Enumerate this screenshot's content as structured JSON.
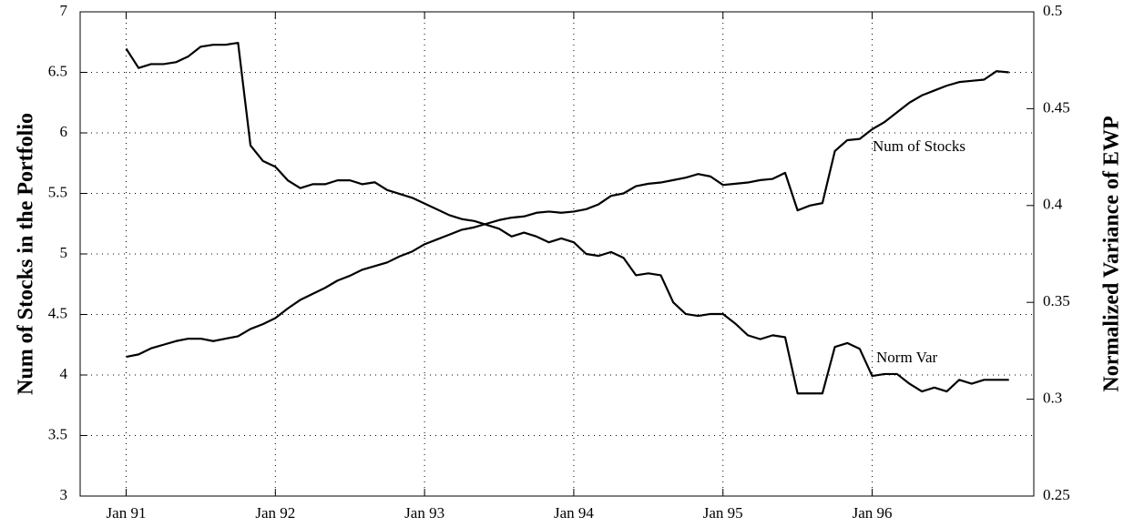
{
  "chart_data": {
    "type": "line",
    "ylabel": "Num of Stocks in the Portfolio",
    "y2label": "Normalized Variance of EWP",
    "xlim": [
      -3.7,
      73
    ],
    "xticks": [
      {
        "value": 0,
        "label": "Jan 91"
      },
      {
        "value": 12,
        "label": "Jan 92"
      },
      {
        "value": 24,
        "label": "Jan 93"
      },
      {
        "value": 36,
        "label": "Jan 94"
      },
      {
        "value": 48,
        "label": "Jan 95"
      },
      {
        "value": 60,
        "label": "Jan 96"
      }
    ],
    "ylim": [
      3,
      7
    ],
    "yticks": [
      3,
      3.5,
      4,
      4.5,
      5,
      5.5,
      6,
      6.5,
      7
    ],
    "y2lim": [
      0.25,
      0.5
    ],
    "y2ticks": [
      0.25,
      0.3,
      0.35,
      0.4,
      0.45,
      0.5
    ],
    "grid": true,
    "x": [
      0,
      1,
      2,
      3,
      4,
      5,
      6,
      7,
      8,
      9,
      10,
      11,
      12,
      13,
      14,
      15,
      16,
      17,
      18,
      19,
      20,
      21,
      22,
      23,
      24,
      25,
      26,
      27,
      28,
      29,
      30,
      31,
      32,
      33,
      34,
      35,
      36,
      37,
      38,
      39,
      40,
      41,
      42,
      43,
      44,
      45,
      46,
      47,
      48,
      49,
      50,
      51,
      52,
      53,
      54,
      55,
      56,
      57,
      58,
      59,
      60,
      61,
      62,
      63,
      64,
      65,
      66,
      67,
      68,
      69,
      70,
      71
    ],
    "series": [
      {
        "name": "Num of Stocks",
        "color": "#000000",
        "axis": "y",
        "values": [
          4.15,
          4.17,
          4.22,
          4.25,
          4.28,
          4.3,
          4.3,
          4.28,
          4.3,
          4.32,
          4.38,
          4.42,
          4.47,
          4.55,
          4.62,
          4.67,
          4.72,
          4.78,
          4.82,
          4.87,
          4.9,
          4.93,
          4.98,
          5.02,
          5.08,
          5.12,
          5.16,
          5.2,
          5.22,
          5.25,
          5.28,
          5.3,
          5.31,
          5.34,
          5.35,
          5.34,
          5.35,
          5.37,
          5.41,
          5.48,
          5.5,
          5.56,
          5.58,
          5.59,
          5.61,
          5.63,
          5.66,
          5.64,
          5.57,
          5.58,
          5.59,
          5.61,
          5.62,
          5.67,
          5.36,
          5.4,
          5.42,
          5.85,
          5.94,
          5.95,
          6.03,
          6.09,
          6.17,
          6.25,
          6.31,
          6.35,
          6.39,
          6.42,
          6.43,
          6.44,
          6.51,
          6.5
        ]
      },
      {
        "name": "Norm Var",
        "color": "#000000",
        "axis": "y2",
        "values": [
          0.481,
          0.471,
          0.473,
          0.473,
          0.474,
          0.477,
          0.482,
          0.483,
          0.483,
          0.484,
          0.431,
          0.423,
          0.42,
          0.413,
          0.409,
          0.411,
          0.411,
          0.413,
          0.413,
          0.411,
          0.412,
          0.408,
          0.406,
          0.404,
          0.401,
          0.398,
          0.395,
          0.393,
          0.392,
          0.39,
          0.388,
          0.384,
          0.386,
          0.384,
          0.381,
          0.383,
          0.381,
          0.375,
          0.374,
          0.376,
          0.373,
          0.364,
          0.365,
          0.364,
          0.35,
          0.344,
          0.343,
          0.344,
          0.344,
          0.339,
          0.333,
          0.331,
          0.333,
          0.332,
          0.303,
          0.303,
          0.303,
          0.327,
          0.329,
          0.326,
          0.312,
          0.313,
          0.313,
          0.308,
          0.304,
          0.306,
          0.304,
          0.31,
          0.308,
          0.31,
          0.31,
          0.31
        ]
      }
    ]
  }
}
